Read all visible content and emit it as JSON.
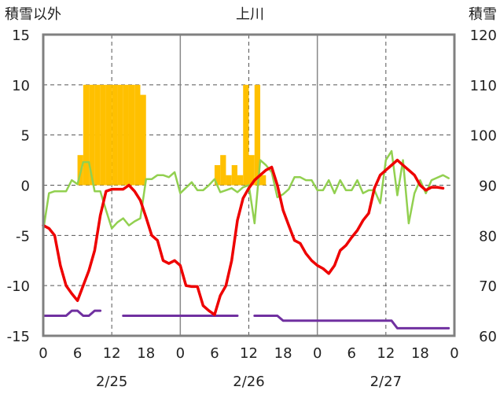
{
  "chart_data": {
    "type": "line",
    "title": "上川",
    "ylabel_left": "積雪以外",
    "ylabel_right": "積雪",
    "ylim_left": [
      -15,
      15
    ],
    "ylim_right": [
      60,
      120
    ],
    "yticks_left": [
      "15",
      "10",
      "5",
      "0",
      "-5",
      "-10",
      "-15"
    ],
    "yticks_right": [
      "120",
      "110",
      "100",
      "90",
      "80",
      "70",
      "60"
    ],
    "x_range_hours": [
      0,
      72
    ],
    "xticks": [
      "0",
      "6",
      "12",
      "18",
      "0",
      "6",
      "12",
      "18",
      "0",
      "6",
      "12",
      "18",
      "0"
    ],
    "dates": [
      "2/25",
      "2/26",
      "2/27"
    ],
    "colors": {
      "temperature": "#ee0000",
      "wind": "#92d050",
      "snowfall": "#ffc000",
      "snow_depth": "#7030a0",
      "axis": "#808080"
    },
    "series": [
      {
        "name": "temperature",
        "axis": "left",
        "points": [
          [
            0,
            -4
          ],
          [
            1,
            -4.3
          ],
          [
            2,
            -5
          ],
          [
            3,
            -8
          ],
          [
            4,
            -10
          ],
          [
            5,
            -10.8
          ],
          [
            6,
            -11.5
          ],
          [
            7,
            -10
          ],
          [
            8,
            -8.5
          ],
          [
            9,
            -6.5
          ],
          [
            10,
            -3
          ],
          [
            11,
            -0.6
          ],
          [
            12,
            -0.4
          ],
          [
            13,
            -0.4
          ],
          [
            14,
            -0.4
          ],
          [
            15,
            0
          ],
          [
            16,
            -0.6
          ],
          [
            17,
            -1.5
          ],
          [
            18,
            -3.2
          ],
          [
            19,
            -5
          ],
          [
            20,
            -5.5
          ],
          [
            21,
            -7.5
          ],
          [
            22,
            -7.8
          ],
          [
            23,
            -7.5
          ],
          [
            24,
            -8
          ],
          [
            25,
            -10
          ],
          [
            26,
            -10.1
          ],
          [
            27,
            -10.1
          ],
          [
            28,
            -12
          ],
          [
            29,
            -12.5
          ],
          [
            30,
            -12.9
          ],
          [
            31,
            -11
          ],
          [
            32,
            -10
          ],
          [
            33,
            -7.5
          ],
          [
            34,
            -3.5
          ],
          [
            35,
            -1.3
          ],
          [
            36,
            -0.3
          ],
          [
            37,
            0.5
          ],
          [
            38,
            1
          ],
          [
            39,
            1.5
          ],
          [
            40,
            1.8
          ],
          [
            41,
            0
          ],
          [
            42,
            -2.5
          ],
          [
            43,
            -4
          ],
          [
            44,
            -5.5
          ],
          [
            45,
            -5.8
          ],
          [
            46,
            -6.8
          ],
          [
            47,
            -7.5
          ],
          [
            48,
            -8
          ],
          [
            49,
            -8.3
          ],
          [
            50,
            -8.8
          ],
          [
            51,
            -8
          ],
          [
            52,
            -6.5
          ],
          [
            53,
            -6
          ],
          [
            54,
            -5.2
          ],
          [
            55,
            -4.5
          ],
          [
            56,
            -3.5
          ],
          [
            57,
            -2.8
          ],
          [
            58,
            -0.3
          ],
          [
            59,
            1
          ],
          [
            60,
            1.5
          ],
          [
            61,
            2
          ],
          [
            62,
            2.5
          ],
          [
            63,
            2
          ],
          [
            64,
            1.5
          ],
          [
            65,
            1
          ],
          [
            66,
            0
          ],
          [
            67,
            -0.5
          ],
          [
            68,
            -0.2
          ],
          [
            69,
            -0.2
          ],
          [
            70,
            -0.3
          ]
        ]
      },
      {
        "name": "wind",
        "axis": "left",
        "points": [
          [
            0,
            -4.5
          ],
          [
            1,
            -0.8
          ],
          [
            2,
            -0.6
          ],
          [
            3,
            -0.6
          ],
          [
            4,
            -0.6
          ],
          [
            5,
            0.5
          ],
          [
            6,
            0.1
          ],
          [
            7,
            2.3
          ],
          [
            8,
            2.3
          ],
          [
            9,
            -0.6
          ],
          [
            10,
            -0.6
          ],
          [
            11,
            -2.5
          ],
          [
            12,
            -4.3
          ],
          [
            13,
            -3.7
          ],
          [
            14,
            -3.3
          ],
          [
            15,
            -4
          ],
          [
            16,
            -3.6
          ],
          [
            17,
            -3.3
          ],
          [
            18,
            0.6
          ],
          [
            19,
            0.6
          ],
          [
            20,
            1
          ],
          [
            21,
            1
          ],
          [
            22,
            0.8
          ],
          [
            23,
            1.3
          ],
          [
            24,
            -0.8
          ],
          [
            26,
            0.3
          ],
          [
            27,
            -0.5
          ],
          [
            28,
            -0.5
          ],
          [
            29,
            0
          ],
          [
            30,
            0.6
          ],
          [
            31,
            -0.7
          ],
          [
            32,
            -0.5
          ],
          [
            33,
            -0.3
          ],
          [
            34,
            -0.7
          ],
          [
            35,
            -0.2
          ],
          [
            36,
            0
          ],
          [
            37,
            -3.8
          ],
          [
            38,
            2.5
          ],
          [
            39,
            2
          ],
          [
            40,
            1.3
          ],
          [
            41,
            -1.2
          ],
          [
            42,
            -0.9
          ],
          [
            43,
            -0.4
          ],
          [
            44,
            0.8
          ],
          [
            45,
            0.8
          ],
          [
            46,
            0.5
          ],
          [
            47,
            0.5
          ],
          [
            48,
            -0.5
          ],
          [
            49,
            -0.5
          ],
          [
            50,
            0.5
          ],
          [
            51,
            -0.8
          ],
          [
            52,
            0.5
          ],
          [
            53,
            -0.5
          ],
          [
            54,
            -0.5
          ],
          [
            55,
            0.5
          ],
          [
            56,
            -0.8
          ],
          [
            57,
            -0.5
          ],
          [
            58,
            -0.5
          ],
          [
            59,
            -1.8
          ],
          [
            60,
            2.5
          ],
          [
            61,
            3.4
          ],
          [
            62,
            -1
          ],
          [
            63,
            2.5
          ],
          [
            64,
            -3.8
          ],
          [
            65,
            -0.8
          ],
          [
            66,
            0.5
          ],
          [
            67,
            -0.8
          ],
          [
            68,
            0.5
          ],
          [
            70,
            1
          ],
          [
            71,
            0.7
          ]
        ]
      },
      {
        "name": "snow_depth",
        "axis": "right",
        "points": [
          [
            0,
            64
          ],
          [
            1,
            64
          ],
          [
            2,
            64
          ],
          [
            3,
            64
          ],
          [
            4,
            64
          ],
          [
            5,
            65
          ],
          [
            6,
            65
          ],
          [
            7,
            64
          ],
          [
            8,
            64
          ],
          [
            9,
            65
          ],
          [
            10,
            65
          ],
          [
            null,
            null
          ],
          [
            14,
            64
          ],
          [
            15,
            64
          ],
          [
            16,
            64
          ],
          [
            17,
            64
          ],
          [
            18,
            64
          ],
          [
            19,
            64
          ],
          [
            20,
            64
          ],
          [
            21,
            64
          ],
          [
            22,
            64
          ],
          [
            23,
            64
          ],
          [
            24,
            64
          ],
          [
            25,
            64
          ],
          [
            26,
            64
          ],
          [
            27,
            64
          ],
          [
            28,
            64
          ],
          [
            29,
            64
          ],
          [
            30,
            64
          ],
          [
            31,
            64
          ],
          [
            32,
            64
          ],
          [
            33,
            64
          ],
          [
            34,
            64
          ],
          [
            null,
            null
          ],
          [
            37,
            64
          ],
          [
            38,
            64
          ],
          [
            39,
            64
          ],
          [
            40,
            64
          ],
          [
            41,
            64
          ],
          [
            42,
            63
          ],
          [
            43,
            63
          ],
          [
            44,
            63
          ],
          [
            45,
            63
          ],
          [
            46,
            63
          ],
          [
            47,
            63
          ],
          [
            48,
            63
          ],
          [
            49,
            63
          ],
          [
            50,
            63
          ],
          [
            51,
            63
          ],
          [
            52,
            63
          ],
          [
            53,
            63
          ],
          [
            54,
            63
          ],
          [
            55,
            63
          ],
          [
            56,
            63
          ],
          [
            57,
            63
          ],
          [
            58,
            63
          ],
          [
            59,
            63
          ],
          [
            60,
            63
          ],
          [
            61,
            63
          ],
          [
            62,
            61.5
          ],
          [
            63,
            61.5
          ],
          [
            64,
            61.5
          ],
          [
            65,
            61.5
          ],
          [
            66,
            61.5
          ],
          [
            67,
            61.5
          ],
          [
            68,
            61.5
          ],
          [
            69,
            61.5
          ],
          [
            70,
            61.5
          ],
          [
            71,
            61.5
          ]
        ]
      }
    ],
    "bars": {
      "name": "snowfall",
      "axis": "left",
      "hours": [
        6,
        7,
        8,
        9,
        10,
        11,
        12,
        13,
        14,
        15,
        16,
        17,
        30,
        31,
        32,
        33,
        34,
        35,
        36,
        37,
        38
      ],
      "values": [
        3,
        10,
        10,
        10,
        10,
        10,
        10,
        10,
        10,
        10,
        10,
        9,
        2,
        3,
        1,
        2,
        1,
        10,
        3,
        10,
        1
      ]
    }
  }
}
